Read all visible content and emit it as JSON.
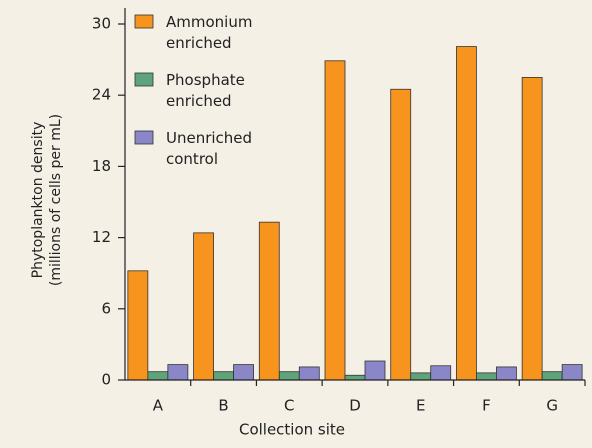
{
  "chart_data": {
    "type": "bar",
    "y_label": [
      "Phytoplankton density",
      "(millions of cells per mL)"
    ],
    "x_label": "Collection site",
    "categories": [
      "A",
      "B",
      "C",
      "D",
      "E",
      "F",
      "G"
    ],
    "series": [
      {
        "name": "Ammonium enriched",
        "color": "#f7941d",
        "values": [
          9.2,
          12.4,
          13.3,
          26.9,
          24.5,
          28.1,
          25.5
        ]
      },
      {
        "name": "Phosphate enriched",
        "color": "#5fa37a",
        "values": [
          0.7,
          0.7,
          0.7,
          0.4,
          0.6,
          0.6,
          0.7
        ]
      },
      {
        "name": "Unenriched control",
        "color": "#8a86c8",
        "values": [
          1.3,
          1.3,
          1.1,
          1.6,
          1.2,
          1.1,
          1.3
        ]
      }
    ],
    "ylim": [
      0,
      30
    ],
    "yticks": [
      0,
      6,
      12,
      18,
      24,
      30
    ],
    "grid": false,
    "legend": "upper left"
  }
}
